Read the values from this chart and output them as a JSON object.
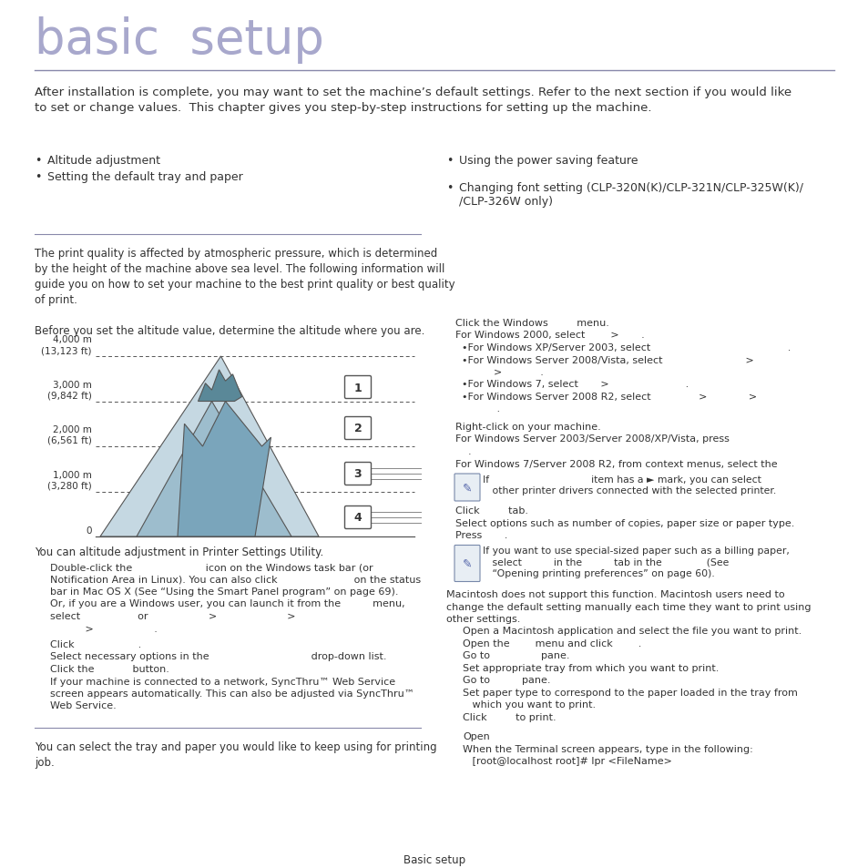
{
  "title": "basic  setup",
  "title_color": "#a8a8cc",
  "title_fontsize": 38,
  "bg_color": "#ffffff",
  "text_color": "#333333",
  "separator_color": "#8888aa",
  "body_text": "After installation is complete, you may want to set the machine’s default settings. Refer to the next section if you would like\nto set or change values.  This chapter gives you step-by-step instructions for setting up the machine.",
  "bullet_left": [
    "Altitude adjustment",
    "Setting the default tray and paper"
  ],
  "bullet_right": [
    "Using the power saving feature",
    "Changing font setting (CLP-320N(K)/CLP-321N/CLP-325W(K)/\n/CLP-326W only)"
  ],
  "section1_body": "The print quality is affected by atmospheric pressure, which is determined\nby the height of the machine above sea level. The following information will\nguide you on how to set your machine to the best print quality or best quality\nof print.\n\nBefore you set the altitude value, determine the altitude where you are.",
  "altitude_labels": [
    "4,000 m\n(13,123 ft)",
    "3,000 m\n(9,842 ft)",
    "2,000 m\n(6,561 ft)",
    "1,000 m\n(3,280 ft)",
    "0"
  ],
  "altitude_numbers": [
    "1",
    "2",
    "3",
    "4"
  ],
  "caption_alt": "You can altitude adjustment in Printer Settings Utility.",
  "step1_lines": [
    "Double-click the                       icon on the Windows task bar (or",
    "Notification Area in Linux). You can also click                        on the status",
    "bar in Mac OS X (See “Using the Smart Panel program” on page 69).",
    "Or, if you are a Windows user, you can launch it from the          menu,",
    "select                  or                   >                      >",
    "           >                   ."
  ],
  "step2_lines": [
    "Click                    .",
    "Select necessary options in the                                drop-down list.",
    "Click the            button.",
    "If your machine is connected to a network, SyncThru™ Web Service",
    "screen appears automatically. This can also be adjusted via SyncThru™",
    "Web Service."
  ],
  "section3_text": "You can select the tray and paper you would like to keep using for printing\njob.",
  "right_col_lines": [
    "Click the Windows         menu.",
    "For Windows 2000, select        >       .",
    "  •For Windows XP/Server 2003, select                                           .",
    "  •For Windows Server 2008/Vista, select                          >",
    "            >            .",
    "  •For Windows 7, select       >                        .",
    "  •For Windows Server 2008 R2, select               >             >",
    "             ."
  ],
  "right_col2_lines": [
    "Right-click on your machine.",
    "For Windows Server 2003/Server 2008/XP/Vista, press",
    "    .",
    "For Windows 7/Server 2008 R2, from context menus, select the"
  ],
  "note1_text": "If                                item has a ► mark, you can select\n   other printer drivers connected with the selected printer.",
  "right_col3_lines": [
    "Click         tab.",
    "Select options such as number of copies, paper size or paper type.",
    "Press       ."
  ],
  "note2_text": "If you want to use special-sized paper such as a billing paper,\n   select          in the          tab in the              (See\n   “Opening printing preferences” on page 60).",
  "right_mac_header": "Macintosh does not support this function. Macintosh users need to\nchange the default setting manually each time they want to print using\nother settings.",
  "right_mac_lines": [
    "Open a Macintosh application and select the file you want to print.",
    "Open the        menu and click        .",
    "Go to                pane.",
    "Set appropriate tray from which you want to print.",
    "Go to          pane.",
    "Set paper type to correspond to the paper loaded in the tray from",
    "   which you want to print.",
    "Click         to print."
  ],
  "right_linux_lines": [
    "Open",
    "When the Terminal screen appears, type in the following:",
    "   [root@localhost root]# lpr <FileName>"
  ],
  "footer": "Basic setup",
  "mtn_colors": [
    "#c5d8e2",
    "#9dbdcd",
    "#7aa5bb",
    "#5a8898"
  ],
  "mtn_edge": "#555555"
}
